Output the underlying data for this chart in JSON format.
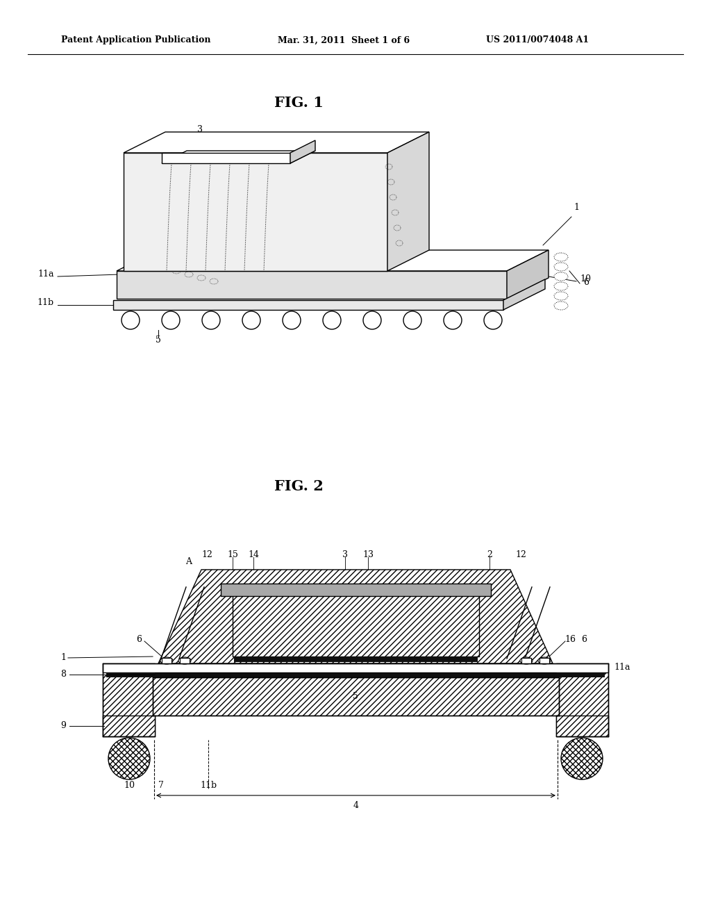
{
  "header_left": "Patent Application Publication",
  "header_mid": "Mar. 31, 2011  Sheet 1 of 6",
  "header_right": "US 2011/0074048 A1",
  "fig1_title": "FIG. 1",
  "fig2_title": "FIG. 2",
  "bg_color": "#ffffff",
  "line_color": "#000000",
  "gray_light": "#e8e8e8",
  "gray_mid": "#c0c0c0",
  "gray_dark": "#888888",
  "dark_fill": "#1a1a1a",
  "hatch_gray": "#d0d0d0"
}
